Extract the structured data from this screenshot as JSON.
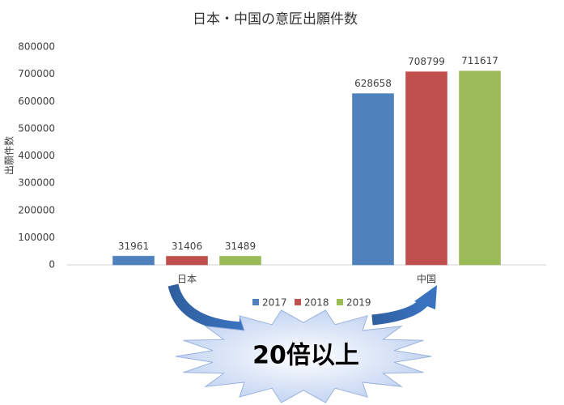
{
  "chart_data": {
    "type": "bar",
    "title": "日本・中国の意匠出願件数",
    "y_label": "出願件数",
    "categories": [
      "日本",
      "中国"
    ],
    "series": [
      {
        "name": "2017",
        "color": "#4f81bd",
        "values": [
          31961,
          628658
        ]
      },
      {
        "name": "2018",
        "color": "#c0504d",
        "values": [
          31406,
          708799
        ]
      },
      {
        "name": "2019",
        "color": "#9bbb59",
        "values": [
          31489,
          711617
        ]
      }
    ],
    "ylim": [
      0,
      800000
    ],
    "yticks": [
      0,
      100000,
      200000,
      300000,
      400000,
      500000,
      600000,
      700000,
      800000
    ],
    "grid": false,
    "legend": "bottom",
    "annotation": "20倍以上"
  }
}
